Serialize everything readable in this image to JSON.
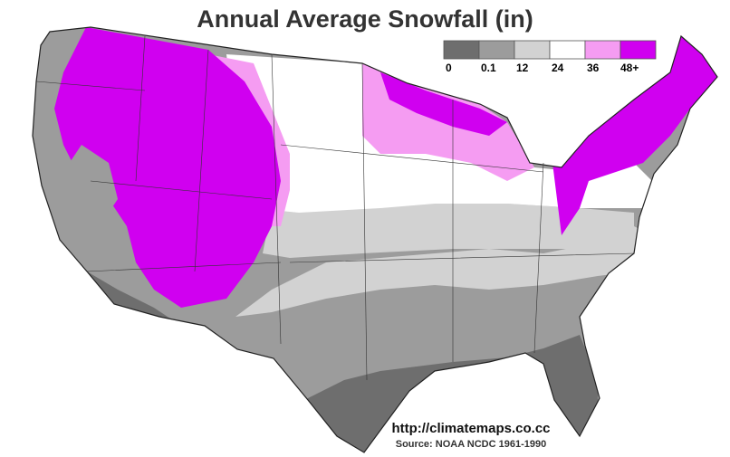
{
  "title": "Annual Average Snowfall (in)",
  "legend": {
    "items": [
      {
        "label": "0",
        "color": "#6e6e6e"
      },
      {
        "label": "0.1",
        "color": "#9c9c9c"
      },
      {
        "label": "12",
        "color": "#d2d2d2"
      },
      {
        "label": "24",
        "color": "#ffffff"
      },
      {
        "label": "36",
        "color": "#f59cf2"
      },
      {
        "label": "48+",
        "color": "#d000f0"
      }
    ]
  },
  "url": "http://climatemaps.co.cc",
  "source": "Source: NOAA NCDC 1961-1990"
}
